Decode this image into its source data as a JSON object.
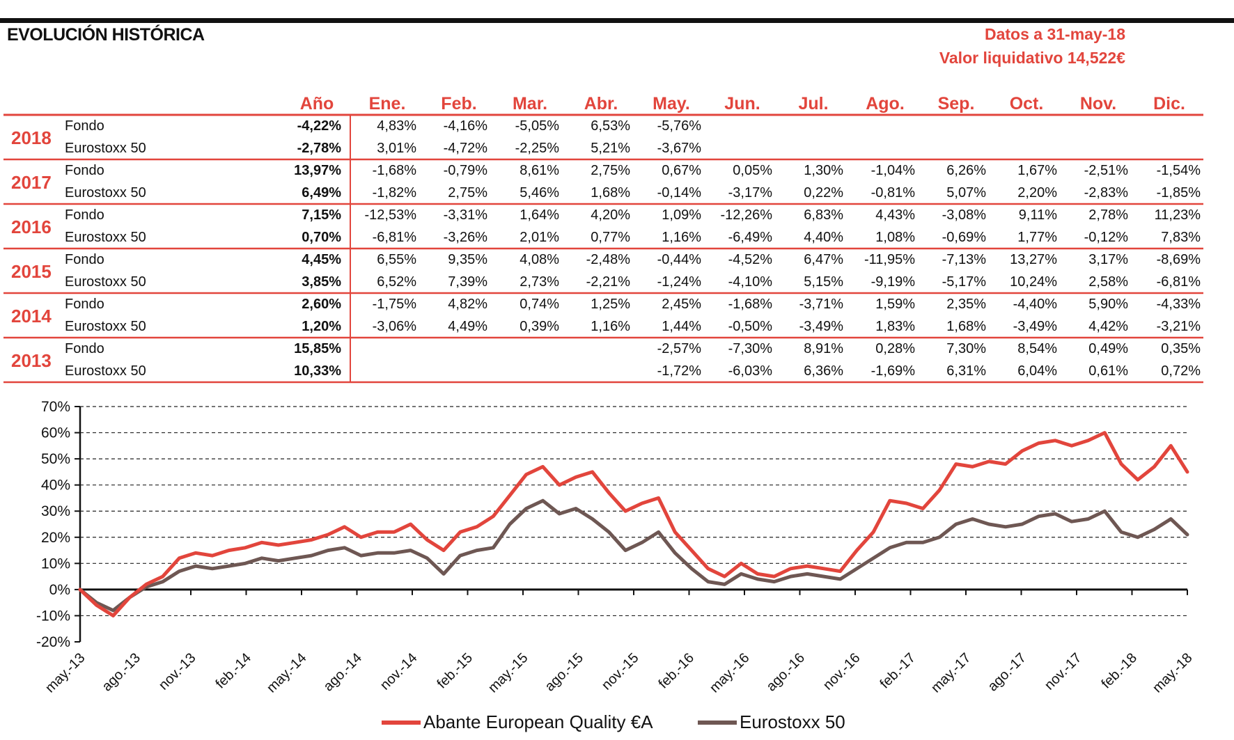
{
  "header": {
    "title": "EVOLUCIÓN HISTÓRICA",
    "date_text": "Datos a 31-may-18",
    "nav_text": "Valor liquidativo 14,522€"
  },
  "table": {
    "columns": [
      "Año",
      "Ene.",
      "Feb.",
      "Mar.",
      "Abr.",
      "May.",
      "Jun.",
      "Jul.",
      "Ago.",
      "Sep.",
      "Oct.",
      "Nov.",
      "Dic."
    ],
    "years": [
      {
        "year": "2018",
        "rows": [
          {
            "label": "Fondo",
            "total": "-4,22%",
            "months": [
              "4,83%",
              "-4,16%",
              "-5,05%",
              "6,53%",
              "-5,76%",
              "",
              "",
              "",
              "",
              "",
              "",
              ""
            ]
          },
          {
            "label": "Eurostoxx 50",
            "total": "-2,78%",
            "months": [
              "3,01%",
              "-4,72%",
              "-2,25%",
              "5,21%",
              "-3,67%",
              "",
              "",
              "",
              "",
              "",
              "",
              ""
            ]
          }
        ]
      },
      {
        "year": "2017",
        "rows": [
          {
            "label": "Fondo",
            "total": "13,97%",
            "months": [
              "-1,68%",
              "-0,79%",
              "8,61%",
              "2,75%",
              "0,67%",
              "0,05%",
              "1,30%",
              "-1,04%",
              "6,26%",
              "1,67%",
              "-2,51%",
              "-1,54%"
            ]
          },
          {
            "label": "Eurostoxx 50",
            "total": "6,49%",
            "months": [
              "-1,82%",
              "2,75%",
              "5,46%",
              "1,68%",
              "-0,14%",
              "-3,17%",
              "0,22%",
              "-0,81%",
              "5,07%",
              "2,20%",
              "-2,83%",
              "-1,85%"
            ]
          }
        ]
      },
      {
        "year": "2016",
        "rows": [
          {
            "label": "Fondo",
            "total": "7,15%",
            "months": [
              "-12,53%",
              "-3,31%",
              "1,64%",
              "4,20%",
              "1,09%",
              "-12,26%",
              "6,83%",
              "4,43%",
              "-3,08%",
              "9,11%",
              "2,78%",
              "11,23%"
            ]
          },
          {
            "label": "Eurostoxx 50",
            "total": "0,70%",
            "months": [
              "-6,81%",
              "-3,26%",
              "2,01%",
              "0,77%",
              "1,16%",
              "-6,49%",
              "4,40%",
              "1,08%",
              "-0,69%",
              "1,77%",
              "-0,12%",
              "7,83%"
            ]
          }
        ]
      },
      {
        "year": "2015",
        "rows": [
          {
            "label": "Fondo",
            "total": "4,45%",
            "months": [
              "6,55%",
              "9,35%",
              "4,08%",
              "-2,48%",
              "-0,44%",
              "-4,52%",
              "6,47%",
              "-11,95%",
              "-7,13%",
              "13,27%",
              "3,17%",
              "-8,69%"
            ]
          },
          {
            "label": "Eurostoxx 50",
            "total": "3,85%",
            "months": [
              "6,52%",
              "7,39%",
              "2,73%",
              "-2,21%",
              "-1,24%",
              "-4,10%",
              "5,15%",
              "-9,19%",
              "-5,17%",
              "10,24%",
              "2,58%",
              "-6,81%"
            ]
          }
        ]
      },
      {
        "year": "2014",
        "rows": [
          {
            "label": "Fondo",
            "total": "2,60%",
            "months": [
              "-1,75%",
              "4,82%",
              "0,74%",
              "1,25%",
              "2,45%",
              "-1,68%",
              "-3,71%",
              "1,59%",
              "2,35%",
              "-4,40%",
              "5,90%",
              "-4,33%"
            ]
          },
          {
            "label": "Eurostoxx 50",
            "total": "1,20%",
            "months": [
              "-3,06%",
              "4,49%",
              "0,39%",
              "1,16%",
              "1,44%",
              "-0,50%",
              "-3,49%",
              "1,83%",
              "1,68%",
              "-3,49%",
              "4,42%",
              "-3,21%"
            ]
          }
        ]
      },
      {
        "year": "2013",
        "rows": [
          {
            "label": "Fondo",
            "total": "15,85%",
            "months": [
              "",
              "",
              "",
              "",
              "-2,57%",
              "-7,30%",
              "8,91%",
              "0,28%",
              "7,30%",
              "8,54%",
              "0,49%",
              "0,35%"
            ]
          },
          {
            "label": "Eurostoxx 50",
            "total": "10,33%",
            "months": [
              "",
              "",
              "",
              "",
              "-1,72%",
              "-6,03%",
              "6,36%",
              "-1,69%",
              "6,31%",
              "6,04%",
              "0,61%",
              "0,72%"
            ]
          }
        ]
      }
    ]
  },
  "chart_data": {
    "type": "line",
    "y_ticks": [
      "70%",
      "60%",
      "50%",
      "40%",
      "30%",
      "20%",
      "10%",
      "0%",
      "-10%",
      "-20%"
    ],
    "ylim": [
      -20,
      70
    ],
    "x_ticks": [
      "may.-13",
      "ago.-13",
      "nov.-13",
      "feb.-14",
      "may.-14",
      "ago.-14",
      "nov.-14",
      "feb.-15",
      "may.-15",
      "ago.-15",
      "nov.-15",
      "feb.-16",
      "may.-16",
      "ago.-16",
      "nov.-16",
      "feb.-17",
      "may.-17",
      "ago.-17",
      "nov.-17",
      "feb.-18",
      "may.-18"
    ],
    "grid": "horizontal-dashed",
    "legend_position": "bottom",
    "series": [
      {
        "name": "Abante European Quality €A",
        "color": "#e2453c",
        "values": [
          0,
          -6,
          -10,
          -3,
          2,
          5,
          12,
          14,
          13,
          15,
          16,
          18,
          17,
          18,
          19,
          21,
          24,
          20,
          22,
          22,
          25,
          19,
          15,
          22,
          24,
          28,
          36,
          44,
          47,
          40,
          43,
          45,
          37,
          30,
          33,
          35,
          22,
          15,
          8,
          5,
          10,
          6,
          5,
          8,
          9,
          8,
          7,
          15,
          22,
          34,
          33,
          31,
          38,
          48,
          47,
          49,
          48,
          53,
          56,
          57,
          55,
          57,
          60,
          48,
          42,
          47,
          55,
          45
        ]
      },
      {
        "name": "Eurostoxx 50",
        "color": "#6e5753",
        "values": [
          0,
          -5,
          -8,
          -3,
          1,
          3,
          7,
          9,
          8,
          9,
          10,
          12,
          11,
          12,
          13,
          15,
          16,
          13,
          14,
          14,
          15,
          12,
          6,
          13,
          15,
          16,
          25,
          31,
          34,
          29,
          31,
          27,
          22,
          15,
          18,
          22,
          14,
          8,
          3,
          2,
          6,
          4,
          3,
          5,
          6,
          5,
          4,
          8,
          12,
          16,
          18,
          18,
          20,
          25,
          27,
          25,
          24,
          25,
          28,
          29,
          26,
          27,
          30,
          22,
          20,
          23,
          27,
          21
        ]
      }
    ]
  }
}
